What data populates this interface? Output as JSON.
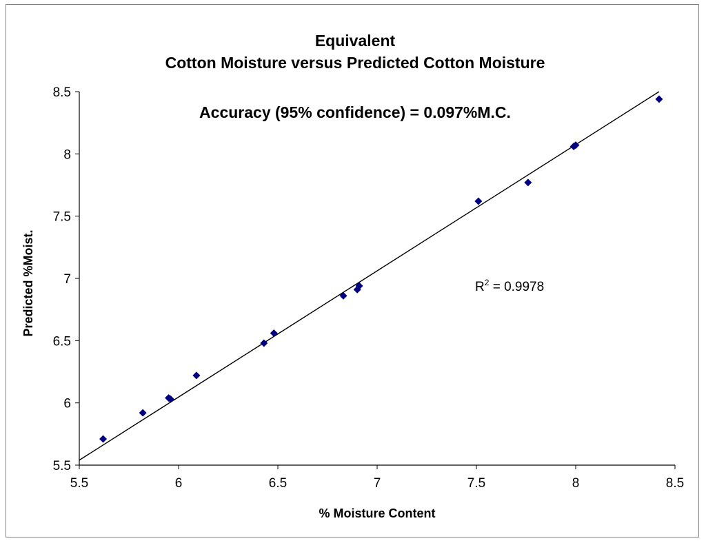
{
  "chart_data": {
    "type": "scatter",
    "title_lines": [
      "Equivalent",
      "Cotton Moisture versus Predicted Cotton Moisture"
    ],
    "annotation": "Accuracy (95% confidence) = 0.097%M.C.",
    "xlabel": "% Moisture Content",
    "ylabel": "Predicted %Moist.",
    "xlim": [
      5.5,
      8.5
    ],
    "ylim": [
      5.5,
      8.5
    ],
    "xticks": [
      "5.5",
      "6",
      "6.5",
      "7",
      "7.5",
      "8",
      "8.5"
    ],
    "yticks": [
      "5.5",
      "6",
      "6.5",
      "7",
      "7.5",
      "8",
      "8.5"
    ],
    "grid": false,
    "legend": "none",
    "marker_color": "#000080",
    "line_color": "#000000",
    "points": [
      {
        "x": 5.62,
        "y": 5.71
      },
      {
        "x": 5.82,
        "y": 5.92
      },
      {
        "x": 5.95,
        "y": 6.04
      },
      {
        "x": 5.96,
        "y": 6.03
      },
      {
        "x": 6.09,
        "y": 6.22
      },
      {
        "x": 6.43,
        "y": 6.48
      },
      {
        "x": 6.48,
        "y": 6.56
      },
      {
        "x": 6.83,
        "y": 6.86
      },
      {
        "x": 6.9,
        "y": 6.91
      },
      {
        "x": 6.91,
        "y": 6.94
      },
      {
        "x": 7.51,
        "y": 7.62
      },
      {
        "x": 7.76,
        "y": 7.77
      },
      {
        "x": 7.99,
        "y": 8.06
      },
      {
        "x": 8.0,
        "y": 8.07
      },
      {
        "x": 8.42,
        "y": 8.44
      }
    ],
    "trendline": {
      "x": [
        5.5,
        8.42
      ],
      "y": [
        5.54,
        8.5
      ],
      "r2_label": "R",
      "r2_sup": "2",
      "r2_value": " = 0.9978"
    }
  }
}
